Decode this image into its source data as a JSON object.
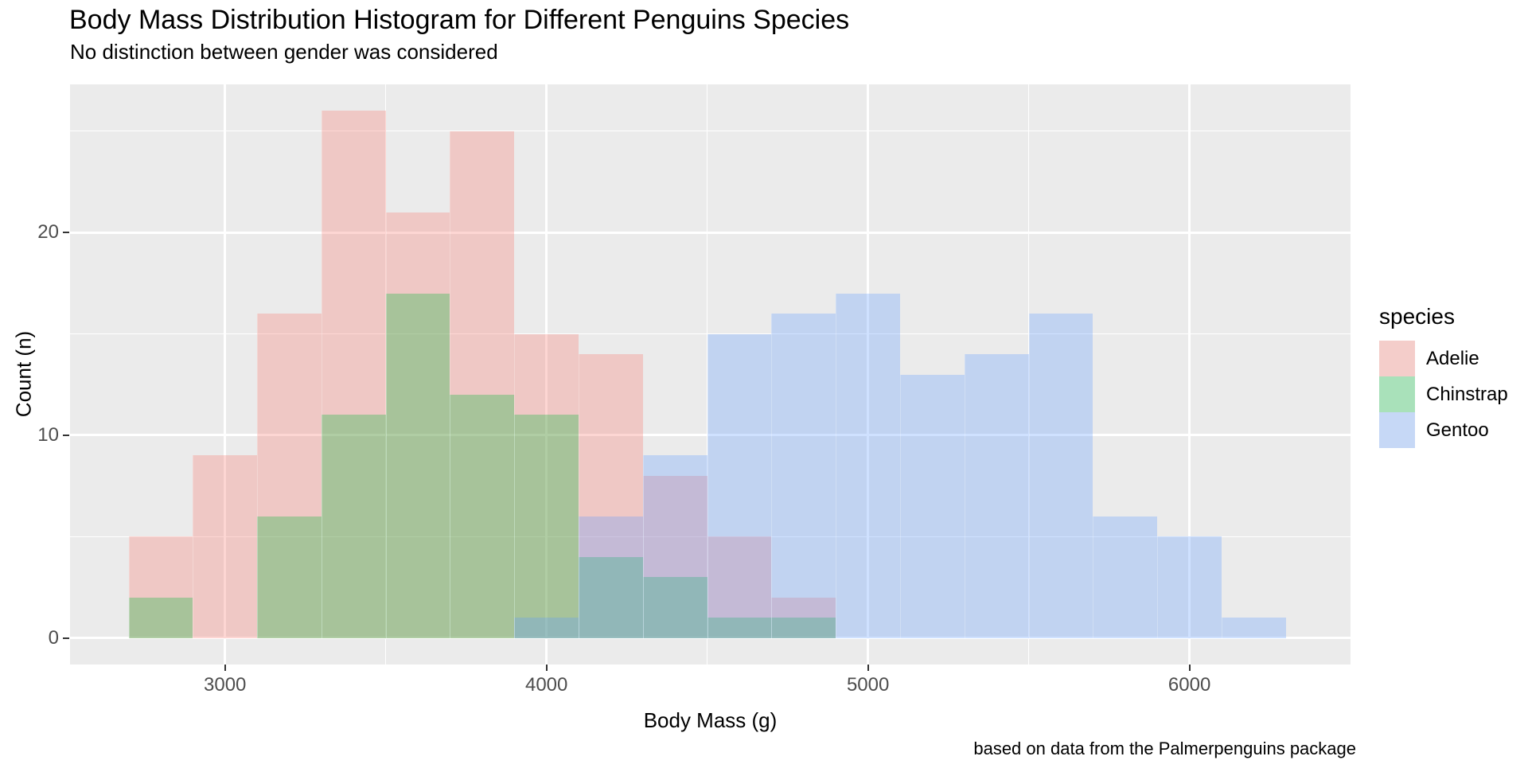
{
  "title": "Body Mass Distribution Histogram for Different Penguins Species",
  "subtitle": "No distinction between gender was considered",
  "caption": "based on data from the Palmerpenguins package",
  "chart_data": {
    "type": "histogram",
    "title": "Body Mass Distribution Histogram for Different Penguins Species",
    "subtitle": "No distinction between gender was considered",
    "caption": "based on data from the Palmerpenguins package",
    "xlabel": "Body Mass (g)",
    "ylabel": "Count (n)",
    "binwidth": 200,
    "x_range": [
      2518,
      6501
    ],
    "y_range": [
      -1.3,
      27.3
    ],
    "x_major_ticks": [
      3000,
      4000,
      5000,
      6000
    ],
    "x_minor_ticks": [
      3500,
      4500,
      5500
    ],
    "y_major_ticks": [
      0,
      10,
      20
    ],
    "y_minor_ticks": [
      5,
      15,
      25
    ],
    "panel_bg": "#EBEBEB",
    "gridline_color": "#FFFFFF",
    "tick_color": "#333333",
    "tick_label_color": "#4D4D4D",
    "fill_alpha": 0.3,
    "legend": {
      "title": "species",
      "position": "right",
      "entries": [
        "Adelie",
        "Chinstrap",
        "Gentoo"
      ]
    },
    "series": [
      {
        "name": "Adelie",
        "color": "#F8766D",
        "bins": [
          [
            2700,
            5
          ],
          [
            2900,
            9
          ],
          [
            3100,
            16
          ],
          [
            3300,
            26
          ],
          [
            3500,
            21
          ],
          [
            3700,
            25
          ],
          [
            3900,
            15
          ],
          [
            4100,
            14
          ],
          [
            4300,
            8
          ],
          [
            4500,
            5
          ],
          [
            4700,
            2
          ]
        ]
      },
      {
        "name": "Chinstrap",
        "color": "#00BA38",
        "bins": [
          [
            2700,
            2
          ],
          [
            3100,
            6
          ],
          [
            3300,
            11
          ],
          [
            3500,
            17
          ],
          [
            3700,
            12
          ],
          [
            3900,
            11
          ],
          [
            4100,
            4
          ],
          [
            4300,
            3
          ],
          [
            4500,
            1
          ],
          [
            4700,
            1
          ]
        ]
      },
      {
        "name": "Gentoo",
        "color": "#619CFF",
        "bins": [
          [
            3900,
            1
          ],
          [
            4100,
            6
          ],
          [
            4300,
            9
          ],
          [
            4500,
            15
          ],
          [
            4700,
            16
          ],
          [
            4900,
            17
          ],
          [
            5100,
            13
          ],
          [
            5300,
            14
          ],
          [
            5500,
            16
          ],
          [
            5700,
            6
          ],
          [
            5900,
            5
          ],
          [
            6100,
            1
          ]
        ]
      }
    ]
  }
}
